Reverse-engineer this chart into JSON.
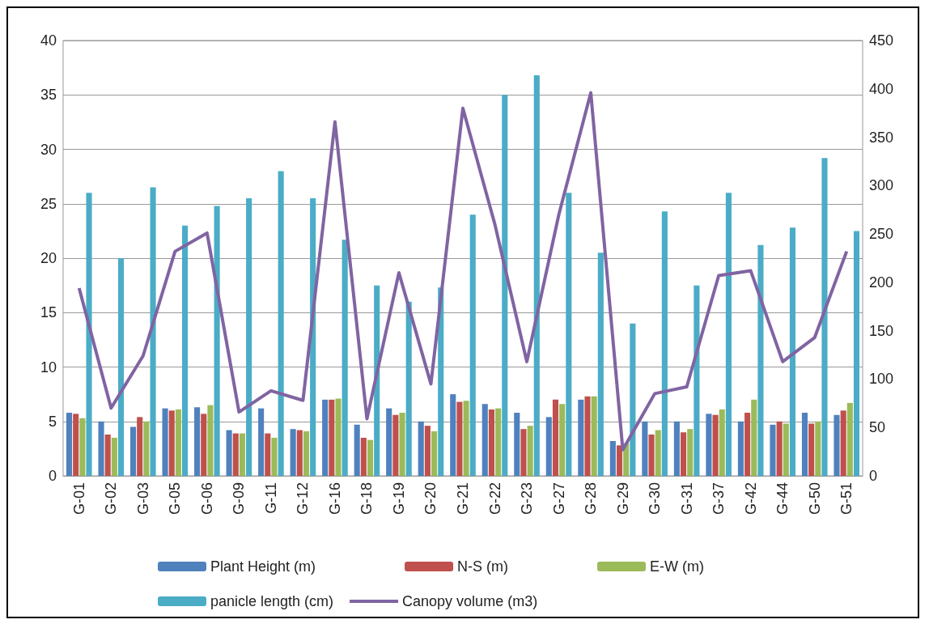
{
  "chart_data": {
    "type": "bar",
    "categories": [
      "G-01",
      "G-02",
      "G-03",
      "G-05",
      "G-06",
      "G-09",
      "G-11",
      "G-12",
      "G-16",
      "G-18",
      "G-19",
      "G-20",
      "G-21",
      "G-22",
      "G-23",
      "G-27",
      "G-28",
      "G-29",
      "G-30",
      "G-31",
      "G-37",
      "G-42",
      "G-44",
      "G-50",
      "G-51"
    ],
    "series": [
      {
        "name": "Plant Height (m)",
        "color": "#4f81bd",
        "values": [
          5.8,
          5.0,
          4.5,
          6.2,
          6.3,
          4.2,
          6.2,
          4.3,
          7.0,
          4.7,
          6.2,
          5.0,
          7.5,
          6.6,
          5.8,
          5.4,
          7.0,
          3.2,
          5.0,
          5.0,
          5.7,
          5.0,
          4.7,
          5.8,
          5.6
        ]
      },
      {
        "name": "N-S (m)",
        "color": "#c0504d",
        "values": [
          5.7,
          3.8,
          5.4,
          6.0,
          5.7,
          3.9,
          3.9,
          4.2,
          7.0,
          3.5,
          5.6,
          4.6,
          6.8,
          6.1,
          4.3,
          7.0,
          7.3,
          2.8,
          3.8,
          4.0,
          5.6,
          5.8,
          5.0,
          4.8,
          6.0
        ]
      },
      {
        "name": "E-W (m)",
        "color": "#9bbb59",
        "values": [
          5.3,
          3.5,
          5.0,
          6.1,
          6.5,
          3.9,
          3.5,
          4.1,
          7.1,
          3.3,
          5.8,
          4.1,
          6.9,
          6.2,
          4.6,
          6.6,
          7.3,
          3.0,
          4.2,
          4.3,
          6.1,
          7.0,
          4.8,
          5.0,
          6.7
        ]
      },
      {
        "name": "panicle length (cm)",
        "color": "#4bacc6",
        "values": [
          26,
          20,
          26.5,
          23,
          24.8,
          25.5,
          28,
          25.5,
          21.7,
          17.5,
          16,
          17.3,
          24,
          35,
          36.8,
          26,
          20.5,
          14,
          24.3,
          17.5,
          26,
          21.2,
          22.8,
          29.2,
          22.5
        ]
      },
      {
        "name": "Canopy volume (m3)",
        "type": "line",
        "axis": "y2",
        "color": "#8064a2",
        "values": [
          194,
          70,
          124,
          232,
          251,
          66,
          88,
          78,
          366,
          59,
          210,
          95,
          380,
          260,
          118,
          270,
          396,
          27,
          85,
          92,
          207,
          212,
          118,
          143,
          232
        ]
      }
    ],
    "ylim": [
      0,
      40
    ],
    "yticks": [
      0,
      5,
      10,
      15,
      20,
      25,
      30,
      35,
      40
    ],
    "y2lim": [
      0,
      450
    ],
    "y2ticks": [
      0,
      50,
      100,
      150,
      200,
      250,
      300,
      350,
      400,
      450
    ],
    "grid": "y",
    "legend": "bottom",
    "marker": "none",
    "line_style": "solid"
  }
}
